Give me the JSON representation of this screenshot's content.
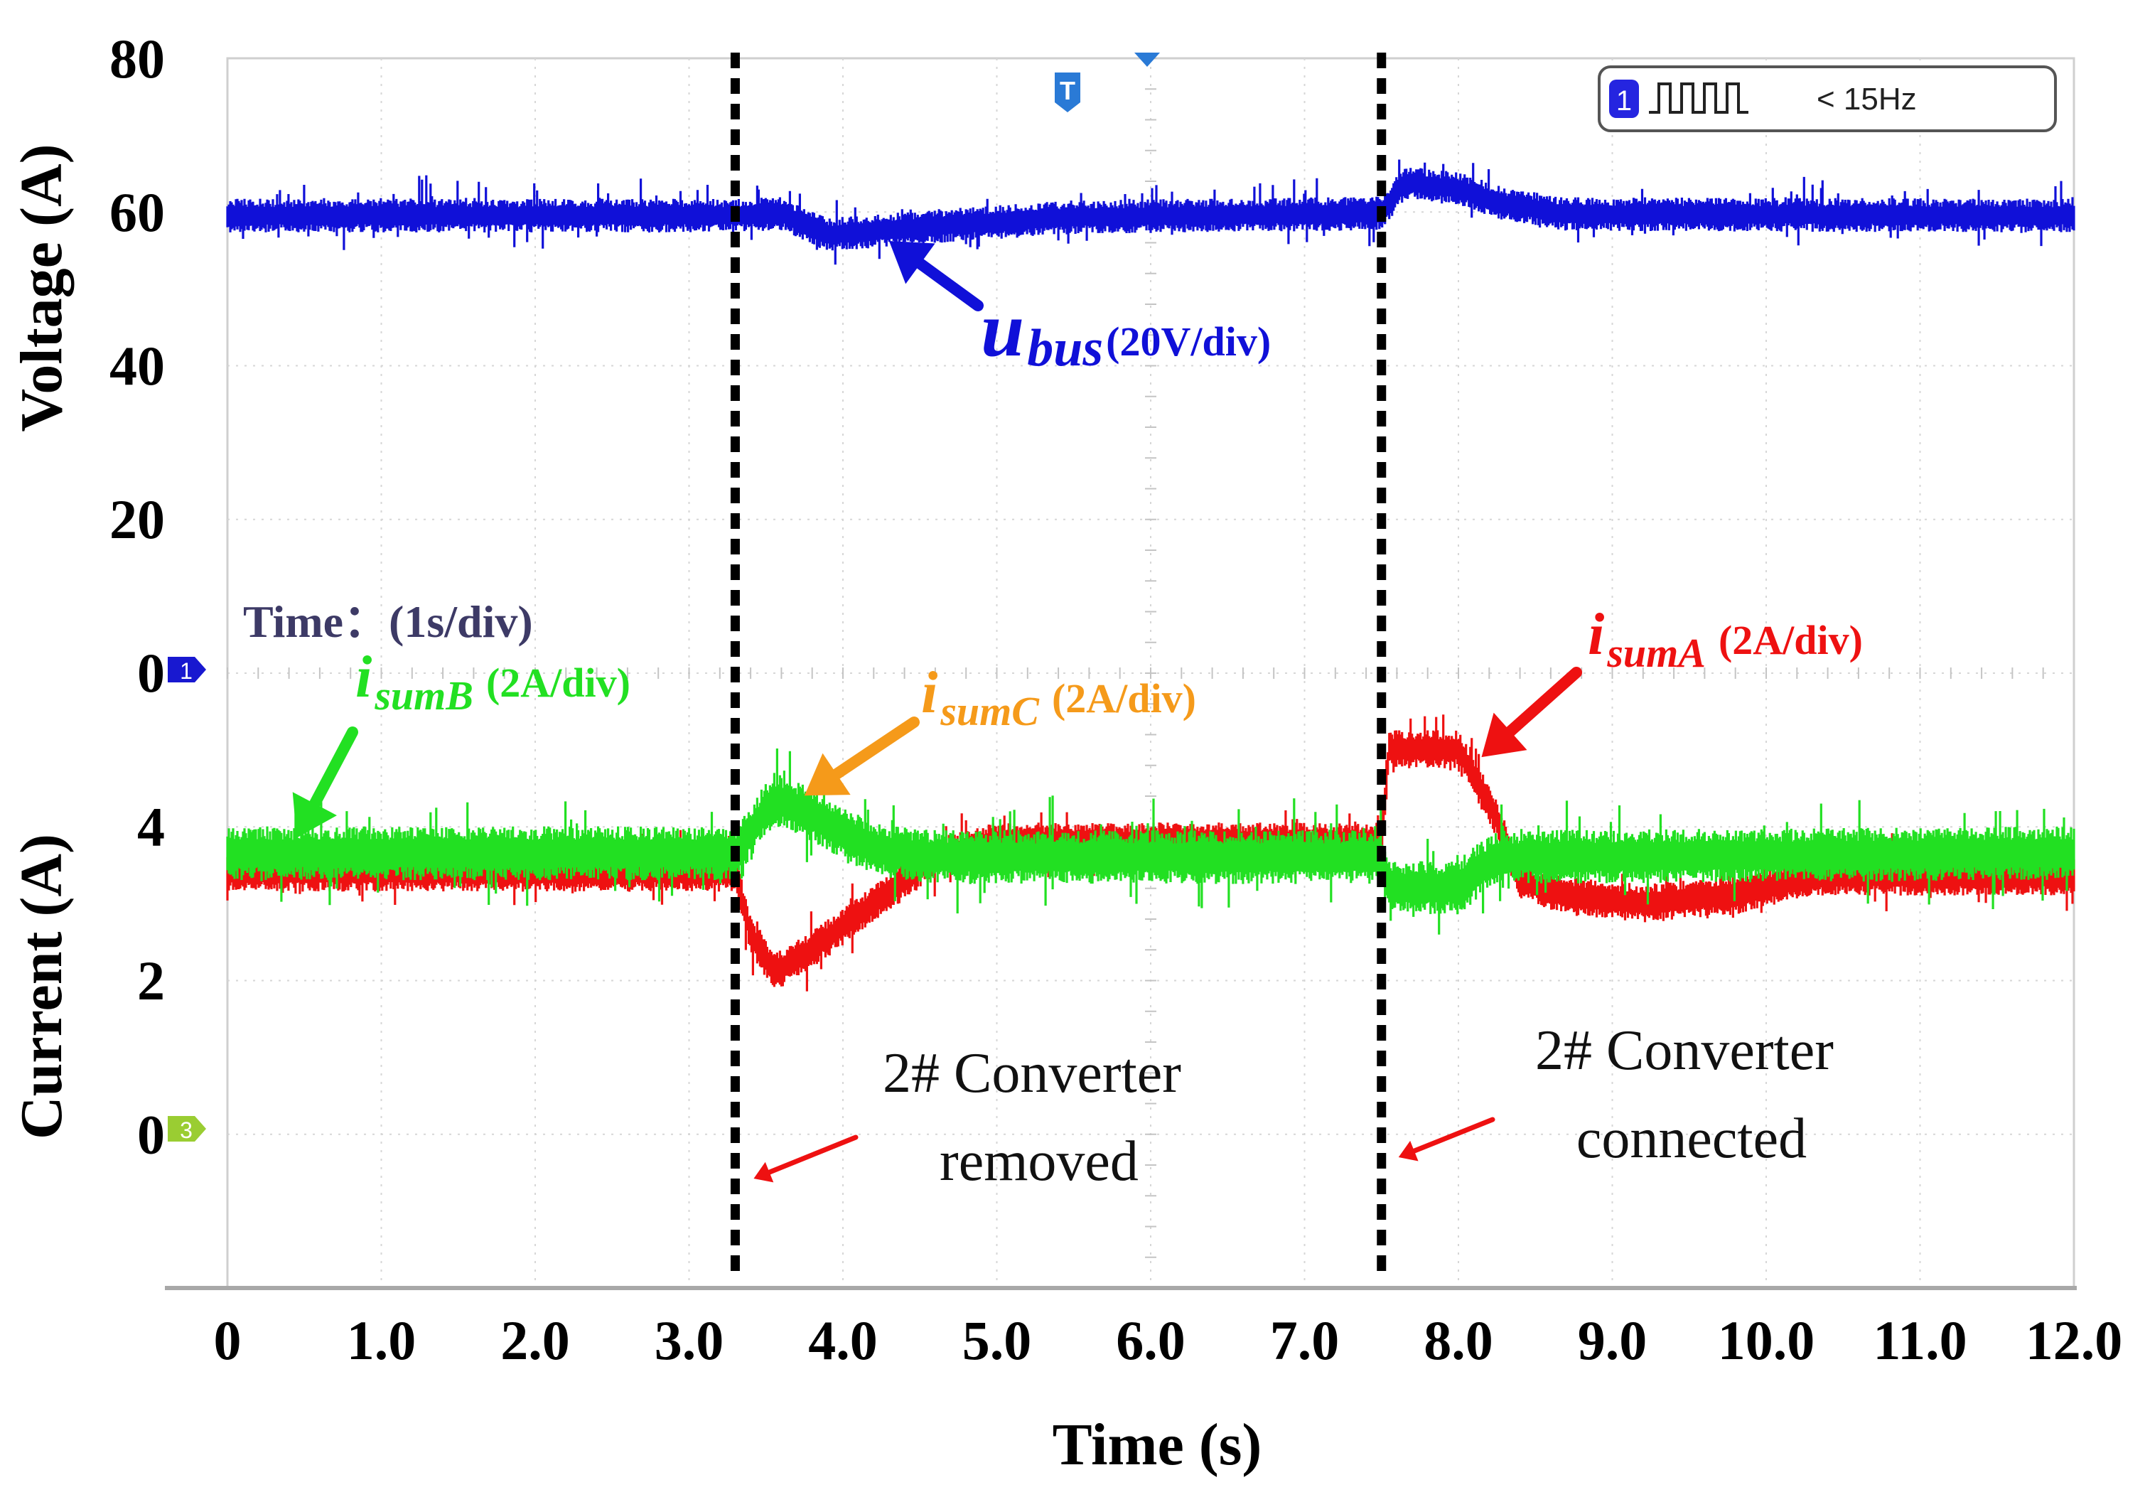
{
  "chart_data": {
    "type": "line",
    "title": "",
    "xlabel": "Time (s)",
    "ylabel_top": "Voltage (A)",
    "ylabel_bottom": "Current (A)",
    "time_scale": "Time：(1s/div)",
    "x_ticks": [
      "0",
      "1.0",
      "2.0",
      "3.0",
      "4.0",
      "5.0",
      "6.0",
      "7.0",
      "8.0",
      "9.0",
      "10.0",
      "11.0",
      "12.0"
    ],
    "xlim": [
      0,
      12
    ],
    "voltage_axis": {
      "ticks": [
        "80",
        "60",
        "40",
        "20",
        "0"
      ],
      "ylim": [
        0,
        80
      ]
    },
    "current_axis": {
      "ticks": [
        "4",
        "2",
        "0"
      ],
      "ylim": [
        -2,
        6
      ]
    },
    "events": [
      {
        "t": 3.3,
        "label_line1": "2# Converter",
        "label_line2": "removed"
      },
      {
        "t": 7.5,
        "label_line1": "2# Converter",
        "label_line2": "connected"
      }
    ],
    "series": [
      {
        "name": "ubus",
        "label_main": "u",
        "label_sub": "bus",
        "unit": "(20V/div)",
        "color": "#1010d8",
        "axis": "voltage",
        "band": 2.2,
        "points": [
          [
            0,
            59.5
          ],
          [
            3.3,
            59.5
          ],
          [
            3.6,
            59.8
          ],
          [
            3.9,
            57.0
          ],
          [
            4.5,
            58.0
          ],
          [
            5.5,
            59.3
          ],
          [
            7.5,
            59.8
          ],
          [
            7.65,
            63.8
          ],
          [
            8.0,
            63.0
          ],
          [
            8.3,
            61.0
          ],
          [
            8.7,
            59.7
          ],
          [
            12,
            59.5
          ]
        ]
      },
      {
        "name": "isumA",
        "label_main": "i",
        "label_sub": "sumA",
        "unit": "(2A/div)",
        "color": "#ee1111",
        "axis": "current",
        "band": 0.25,
        "points": [
          [
            0,
            3.4
          ],
          [
            3.3,
            3.4
          ],
          [
            3.4,
            2.6
          ],
          [
            3.55,
            2.1
          ],
          [
            3.8,
            2.4
          ],
          [
            4.2,
            3.0
          ],
          [
            4.6,
            3.6
          ],
          [
            5.0,
            3.8
          ],
          [
            7.5,
            3.8
          ],
          [
            7.55,
            5.0
          ],
          [
            8.0,
            5.0
          ],
          [
            8.25,
            4.1
          ],
          [
            8.4,
            3.3
          ],
          [
            8.7,
            3.1
          ],
          [
            9.2,
            3.0
          ],
          [
            9.8,
            3.1
          ],
          [
            10.3,
            3.35
          ],
          [
            12,
            3.35
          ]
        ]
      },
      {
        "name": "isumB",
        "label_main": "i",
        "label_sub": "sumB",
        "unit": "(2A/div)",
        "color": "#22e022",
        "axis": "current",
        "band": 0.35,
        "points": [
          [
            0,
            3.65
          ],
          [
            3.3,
            3.65
          ],
          [
            3.55,
            4.35
          ],
          [
            3.75,
            4.2
          ],
          [
            4.2,
            3.7
          ],
          [
            4.6,
            3.6
          ],
          [
            7.5,
            3.6
          ],
          [
            7.55,
            3.2
          ],
          [
            8.0,
            3.2
          ],
          [
            8.25,
            3.6
          ],
          [
            12,
            3.65
          ]
        ]
      },
      {
        "name": "isumC",
        "label_main": "i",
        "label_sub": "sumC",
        "unit": "(2A/div)",
        "color": "#f59a1a",
        "axis": "current",
        "band": 0.0,
        "points": []
      }
    ],
    "annotations": [
      {
        "target": "ubus",
        "t": 4.3,
        "y": 57.5
      },
      {
        "target": "isumA",
        "t": 8.15,
        "y": 4.9
      },
      {
        "target": "isumB",
        "t": 0.45,
        "y": 3.85
      },
      {
        "target": "isumC",
        "t": 3.75,
        "y": 4.4
      }
    ],
    "scope_badges": {
      "ch1": "1",
      "ch3": "3",
      "trigger": "T",
      "freq_ch": "1",
      "freq_text": "< 15Hz"
    }
  }
}
